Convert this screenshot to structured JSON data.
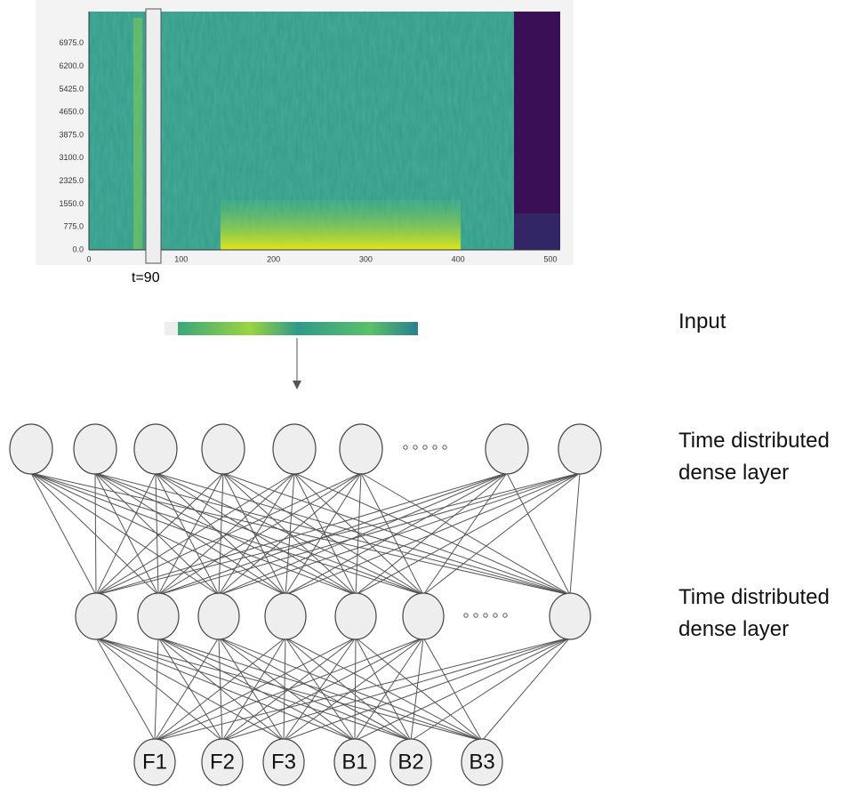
{
  "spectrogram": {
    "yticks": [
      "0.0",
      "775.0",
      "1550.0",
      "2325.0",
      "3100.0",
      "3875.0",
      "4650.0",
      "5425.0",
      "6200.0",
      "6975.0"
    ],
    "xticks": [
      "0",
      "100",
      "200",
      "300",
      "400",
      "500"
    ],
    "marker": "t=90"
  },
  "labels": {
    "input": "Input",
    "layer1": [
      "Time distributed",
      "dense layer"
    ],
    "layer2": [
      "Time distributed",
      "dense layer"
    ]
  },
  "outputs": [
    "F1",
    "F2",
    "F3",
    "B1",
    "B2",
    "B3"
  ]
}
